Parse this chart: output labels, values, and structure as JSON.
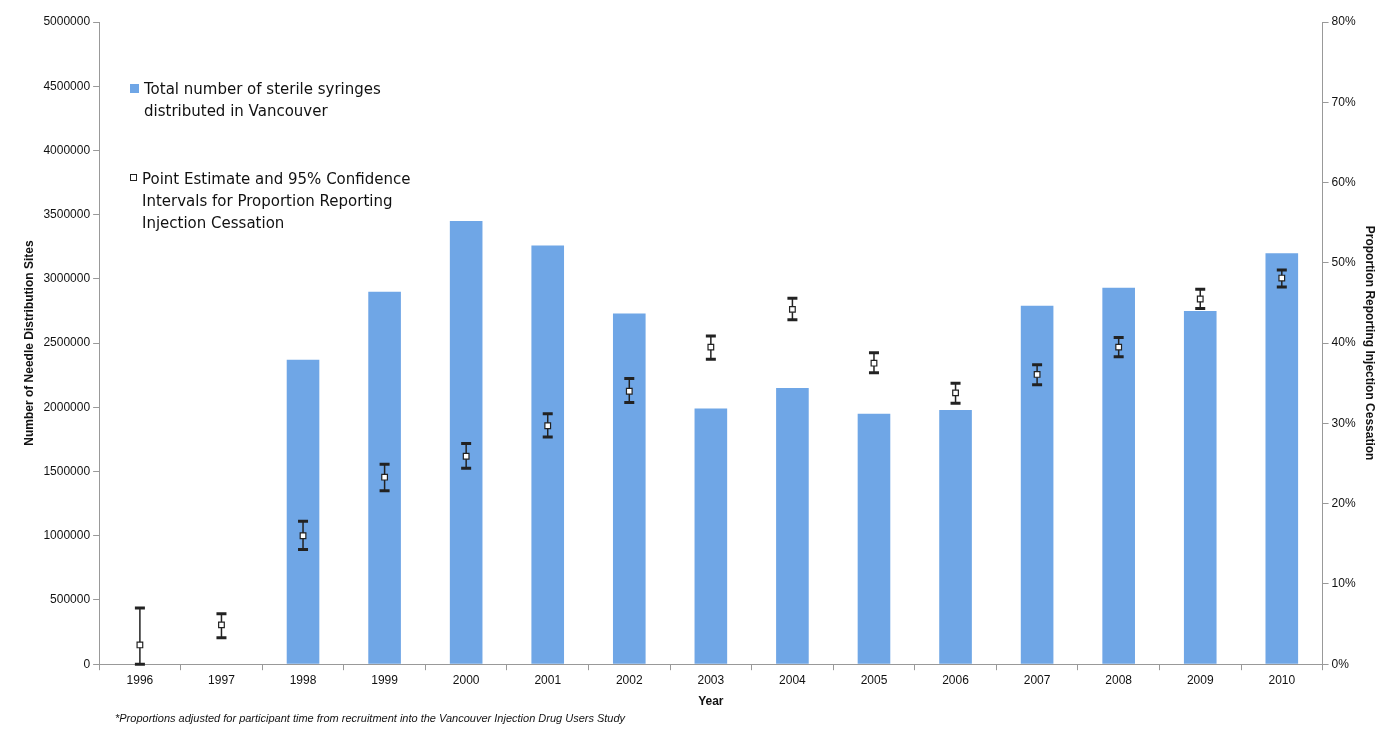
{
  "chart_data": {
    "type": "bar",
    "xlabel": "Year",
    "ylabel": "Number of Needle Distribution Sites",
    "y2label": "Proportion Reporting Injection Cessation",
    "categories": [
      "1996",
      "1997",
      "1998",
      "1999",
      "2000",
      "2001",
      "2002",
      "2003",
      "2004",
      "2005",
      "2006",
      "2007",
      "2008",
      "2009",
      "2010"
    ],
    "series": [
      {
        "name": "Total number of sterile syringes distributed in Vancouver",
        "color": "#6fa6e6",
        "values": [
          null,
          null,
          2370000,
          2900000,
          3450000,
          3260000,
          2730000,
          1990000,
          2150000,
          1950000,
          1980000,
          2790000,
          2930000,
          2750000,
          3200000
        ]
      },
      {
        "name": "Point Estimate and 95% Confidence Intervals for Proportion Reporting Injection Cessation",
        "type": "scatter",
        "axis": "y2",
        "marker": "square",
        "color": "#222222",
        "values": [
          2.4,
          4.9,
          16.0,
          23.3,
          25.9,
          29.7,
          34.0,
          39.5,
          44.2,
          37.5,
          33.8,
          36.1,
          39.5,
          45.5,
          48.1
        ],
        "errors": [
          [
            0,
            7.0
          ],
          [
            3.3,
            6.3
          ],
          [
            14.3,
            17.8
          ],
          [
            21.6,
            24.9
          ],
          [
            24.4,
            27.5
          ],
          [
            28.3,
            31.2
          ],
          [
            32.6,
            35.6
          ],
          [
            38.0,
            40.9
          ],
          [
            42.9,
            45.6
          ],
          [
            36.3,
            38.8
          ],
          [
            32.5,
            35.0
          ],
          [
            34.8,
            37.3
          ],
          [
            38.3,
            40.7
          ],
          [
            44.3,
            46.7
          ],
          [
            47.0,
            49.1
          ]
        ]
      }
    ],
    "ylim": [
      0,
      5000000
    ],
    "yticks": [
      0,
      500000,
      1000000,
      1500000,
      2000000,
      2500000,
      3000000,
      3500000,
      4000000,
      4500000,
      5000000
    ],
    "y2lim": [
      0,
      80
    ],
    "y2ticks": [
      {
        "value": 0,
        "label": "0%"
      },
      {
        "value": 10,
        "label": "10%"
      },
      {
        "value": 20,
        "label": "20%"
      },
      {
        "value": 30,
        "label": "30%"
      },
      {
        "value": 40,
        "label": "40%"
      },
      {
        "value": 50,
        "label": "50%"
      },
      {
        "value": 60,
        "label": "60%"
      },
      {
        "value": 70,
        "label": "70%"
      },
      {
        "value": 80,
        "label": "80%"
      }
    ],
    "grid": false,
    "legend": "top left",
    "annotations": [
      "*Proportions adjusted for participant time from recruitment into the Vancouver Injection Drug Users Study"
    ]
  }
}
